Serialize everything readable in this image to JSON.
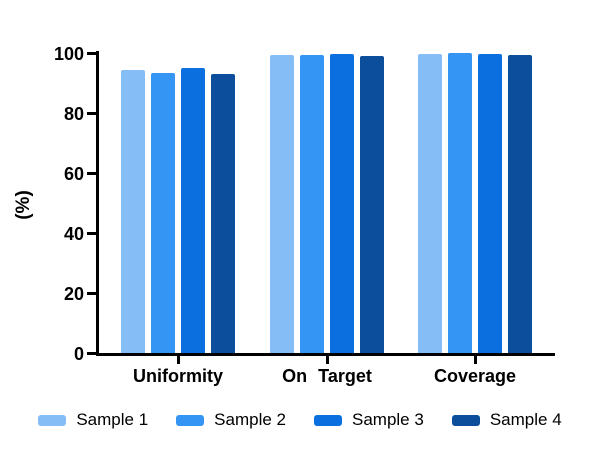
{
  "figure": {
    "background": "#ffffff",
    "axis_color": "#000000",
    "text_color": "#000000"
  },
  "chart_data": {
    "type": "bar",
    "title": "",
    "xlabel": "",
    "ylabel": "(%)",
    "ylim": [
      0,
      100
    ],
    "yticks": [
      0,
      20,
      40,
      60,
      80,
      100
    ],
    "grid": false,
    "legend_position": "bottom",
    "categories": [
      "Uniformity",
      "On Target",
      "Coverage"
    ],
    "series": [
      {
        "name": "Sample 1",
        "color": "#85BDF7",
        "values": [
          94.2,
          99.2,
          99.7
        ]
      },
      {
        "name": "Sample 2",
        "color": "#3595F5",
        "values": [
          93.5,
          99.4,
          99.9
        ]
      },
      {
        "name": "Sample 3",
        "color": "#0B6FE0",
        "values": [
          94.9,
          99.6,
          99.8
        ]
      },
      {
        "name": "Sample 4",
        "color": "#0C4E9B",
        "values": [
          93.0,
          99.0,
          99.5
        ]
      }
    ]
  }
}
